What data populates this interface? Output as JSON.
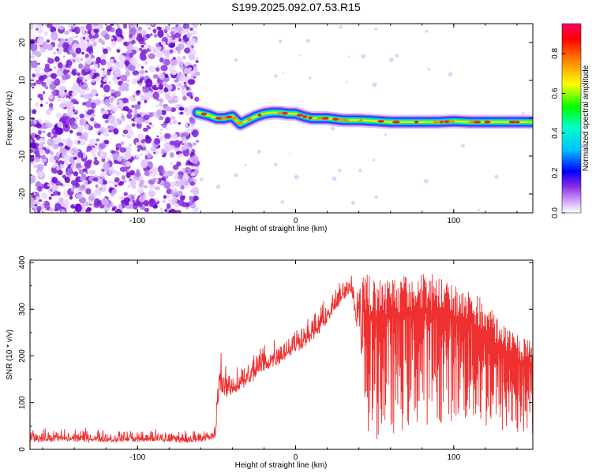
{
  "title": "S199.2025.092.07.53.R15",
  "chart_data": [
    {
      "type": "heatmap",
      "xlabel": "Height of straight line (km)",
      "ylabel": "Frequency (Hz)",
      "xlim": [
        -168,
        150
      ],
      "ylim": [
        -25,
        25
      ],
      "xticks": [
        -100,
        0,
        100
      ],
      "yticks": [
        -20,
        -10,
        0,
        10,
        20
      ],
      "colorbar": {
        "label": "Normalized spectral amplitude",
        "range": [
          0,
          0.95
        ],
        "ticks": [
          "0.0",
          "0.2",
          "0.4",
          "0.6",
          "0.8"
        ]
      },
      "noise_region_x": [
        -168,
        -62
      ],
      "ridge": {
        "x": [
          -62,
          -55,
          -50,
          -45,
          -40,
          -35,
          -30,
          -25,
          -20,
          -15,
          -10,
          -5,
          0,
          5,
          10,
          20,
          30,
          40,
          50,
          60,
          70,
          80,
          90,
          100,
          110,
          120,
          130,
          140,
          150
        ],
        "y": [
          1.5,
          0.8,
          0,
          0,
          0.5,
          -1.5,
          -0.5,
          0.5,
          1.2,
          1.5,
          1.5,
          1.2,
          1.2,
          0.5,
          0,
          0,
          -0.5,
          -0.5,
          -0.7,
          -1,
          -1,
          -1,
          -1,
          -0.8,
          -1,
          -1,
          -1,
          -1,
          -1
        ]
      },
      "peak_amplitude": 0.95
    },
    {
      "type": "line",
      "xlabel": "Height of straight line (km)",
      "ylabel": "SNR (10 * v/v)",
      "xlim": [
        -168,
        150
      ],
      "ylim": [
        0,
        405
      ],
      "xticks": [
        -100,
        0,
        100
      ],
      "yticks": [
        0,
        100,
        200,
        300,
        400
      ],
      "color": "#ee3030",
      "envelope": {
        "x": [
          -168,
          -60,
          -51,
          -48,
          -46,
          -40,
          -30,
          -20,
          -10,
          0,
          10,
          20,
          30,
          35,
          40,
          45,
          50,
          60,
          70,
          80,
          90,
          100,
          110,
          120,
          130,
          140,
          150
        ],
        "upper": [
          45,
          40,
          50,
          240,
          180,
          175,
          195,
          230,
          245,
          265,
          285,
          325,
          370,
          380,
          375,
          375,
          370,
          375,
          375,
          385,
          370,
          360,
          345,
          320,
          270,
          245,
          230
        ],
        "lower": [
          5,
          5,
          10,
          90,
          80,
          95,
          115,
          140,
          160,
          185,
          210,
          250,
          300,
          320,
          180,
          20,
          20,
          30,
          40,
          50,
          55,
          60,
          50,
          40,
          30,
          25,
          30
        ]
      }
    }
  ]
}
